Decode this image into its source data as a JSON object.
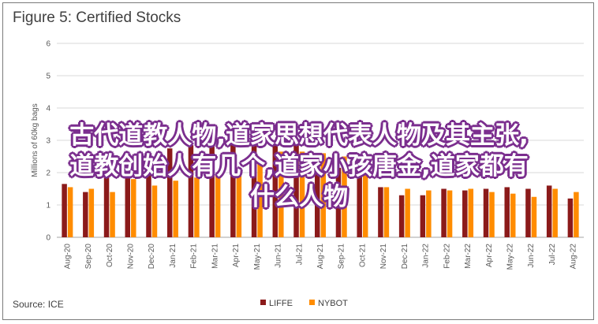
{
  "title": "Figure 5: Certified Stocks",
  "source": "Source: ICE",
  "overlay_lines": [
    "古代道教人物,道家思想代表人物及其主张,",
    "道教创始人有几个,道家小孩唐金,道家都有",
    "什么人物"
  ],
  "colors": {
    "LIFFE": "#8b1a1a",
    "NYBOT": "#ff8c00",
    "grid": "#d9d9d9",
    "overlay_stroke": "#7b2e8e"
  },
  "chart_data": {
    "type": "bar",
    "title": "Figure 5: Certified Stocks",
    "ylabel": "Millions of 60kg bags",
    "xlabel": "",
    "ylim": [
      0,
      6
    ],
    "yticks": [
      0,
      1,
      2,
      3,
      4,
      5,
      6
    ],
    "grid": true,
    "legend_position": "bottom",
    "categories": [
      "Aug-20",
      "Sep-20",
      "Oct-20",
      "Nov-20",
      "Dec-20",
      "Jan-21",
      "Feb-21",
      "Mar-21",
      "Apr-21",
      "May-21",
      "Jun-21",
      "Jul-21",
      "Aug-21",
      "Sep-21",
      "Oct-21",
      "Nov-21",
      "Dec-21",
      "Jan-22",
      "Feb-22",
      "Mar-22",
      "Apr-22",
      "May-22",
      "Jun-22",
      "Jul-22",
      "Aug-22"
    ],
    "series": [
      {
        "name": "LIFFE",
        "values": [
          1.65,
          1.4,
          2.05,
          2.45,
          2.6,
          2.75,
          2.85,
          2.95,
          3.0,
          3.3,
          3.0,
          2.85,
          2.6,
          2.15,
          1.95,
          1.55,
          1.3,
          1.3,
          1.5,
          1.45,
          1.5,
          1.55,
          1.5,
          1.6,
          1.2
        ]
      },
      {
        "name": "NYBOT",
        "values": [
          1.55,
          1.5,
          1.4,
          1.8,
          1.6,
          1.75,
          1.85,
          1.95,
          2.15,
          2.4,
          2.65,
          2.65,
          2.6,
          2.5,
          2.0,
          1.55,
          1.5,
          1.45,
          1.45,
          1.5,
          1.4,
          1.35,
          1.25,
          1.5,
          1.4
        ]
      }
    ]
  }
}
